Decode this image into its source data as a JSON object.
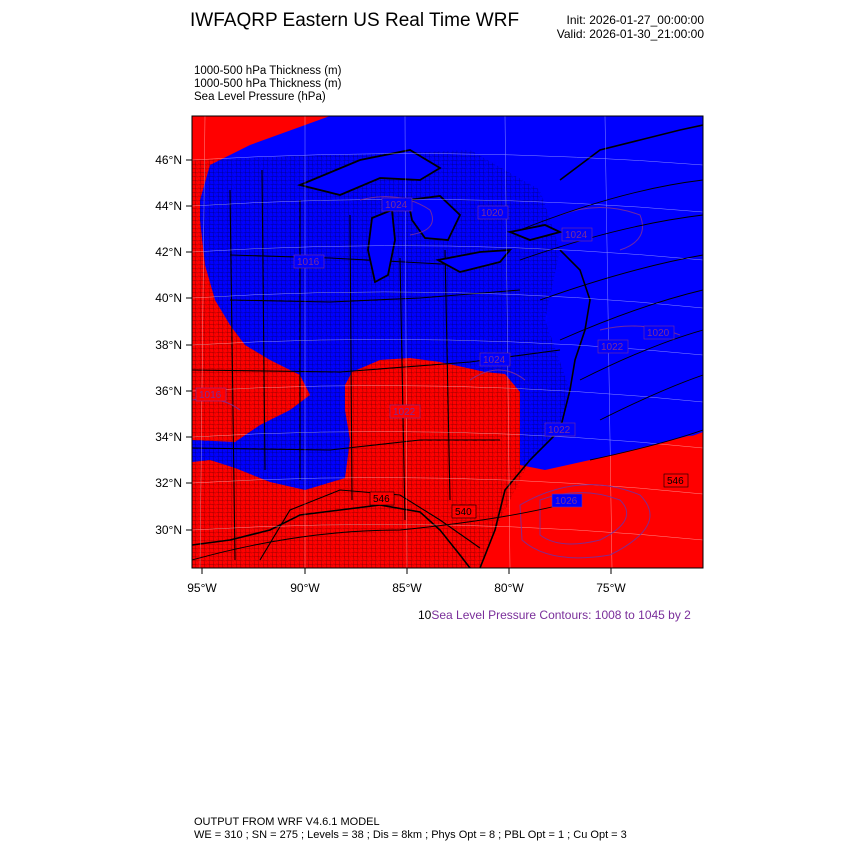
{
  "header": {
    "title": "IWFAQRP Eastern US Real Time WRF",
    "init": "Init: 2026-01-27_00:00:00",
    "valid": "Valid: 2026-01-30_21:00:00"
  },
  "fields": [
    "1000-500 hPa Thickness   (m)",
    "1000-500 hPa Thickness   (m)",
    "Sea Level Pressure   (hPa)"
  ],
  "colors": {
    "cold_fill": "#0000ff",
    "warm_fill": "#ff0000",
    "contour_slp": "#7a2e9a",
    "boundary": "#000000"
  },
  "axes": {
    "lat_labels": [
      "46°N",
      "44°N",
      "42°N",
      "40°N",
      "38°N",
      "36°N",
      "34°N",
      "32°N",
      "30°N"
    ],
    "lon_labels": [
      "95°W",
      "90°W",
      "85°W",
      "80°W",
      "75°W"
    ]
  },
  "contour_labels": {
    "thickness": [
      "546",
      "546",
      "540"
    ],
    "slp": [
      "1020",
      "1020",
      "1024",
      "1024",
      "1022",
      "1022",
      "1026",
      "1022",
      "1024",
      "1016",
      "1016"
    ]
  },
  "contour_note": {
    "prefix": "10",
    "text": "Sea Level Pressure Contours: 1008 to 1045 by 2"
  },
  "footer": {
    "line1": "OUTPUT FROM WRF V4.6.1 MODEL",
    "line2": "WE = 310 ; SN = 275 ; Levels = 38 ; Dis = 8km ; Phys Opt = 8 ; PBL Opt = 1 ; Cu Opt = 3"
  }
}
